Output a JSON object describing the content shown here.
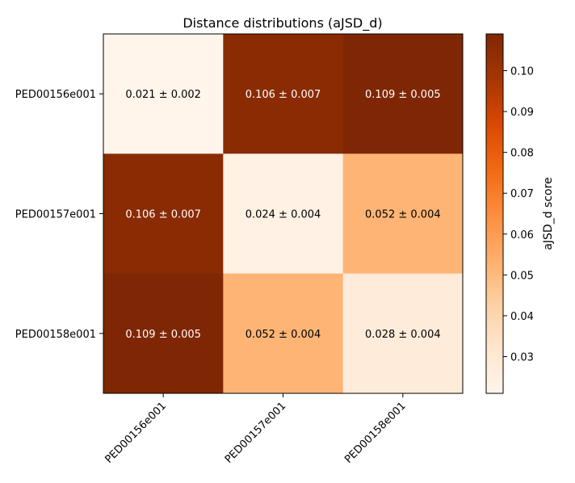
{
  "chart_data": {
    "type": "heatmap",
    "title": "Distance distributions (aJSD_d)",
    "row_labels": [
      "PED00156e001",
      "PED00157e001",
      "PED00158e001"
    ],
    "col_labels": [
      "PED00156e001",
      "PED00157e001",
      "PED00158e001"
    ],
    "values": [
      [
        0.021,
        0.106,
        0.109
      ],
      [
        0.106,
        0.024,
        0.052
      ],
      [
        0.109,
        0.052,
        0.028
      ]
    ],
    "cell_labels": [
      [
        "0.021 ± 0.002",
        "0.106 ± 0.007",
        "0.109 ± 0.005"
      ],
      [
        "0.106 ± 0.007",
        "0.024 ± 0.004",
        "0.052 ± 0.004"
      ],
      [
        "0.109 ± 0.005",
        "0.052 ± 0.004",
        "0.028 ± 0.004"
      ]
    ],
    "colorbar": {
      "label": "aJSD_d score",
      "range": [
        0.021,
        0.109
      ],
      "ticks": [
        0.03,
        0.04,
        0.05,
        0.06,
        0.07,
        0.08,
        0.09,
        0.1
      ],
      "tick_labels": [
        "0.03",
        "0.04",
        "0.05",
        "0.06",
        "0.07",
        "0.08",
        "0.09",
        "0.10"
      ]
    },
    "colormap": "Oranges",
    "colors": {
      "low": "#fff5eb",
      "mid": "#fdae6b",
      "high": "#7f2704",
      "dark_text": "#000000",
      "light_text": "#ffffff"
    }
  }
}
